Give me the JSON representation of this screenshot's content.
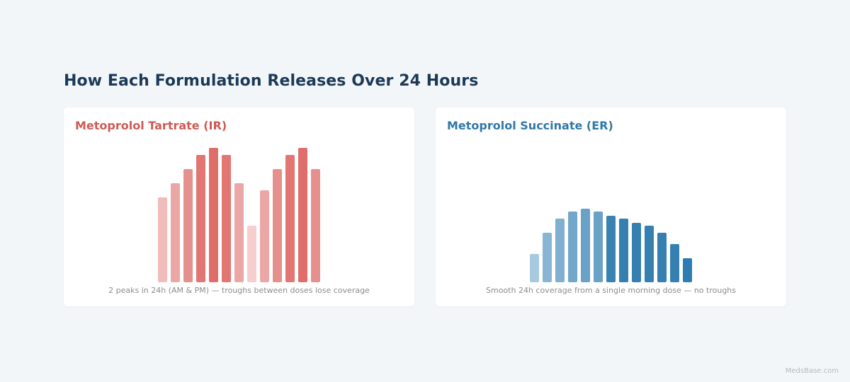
{
  "title": "How Each Formulation Releases Over 24 Hours",
  "watermark": "MedsBase.com",
  "chart_data": [
    {
      "type": "bar",
      "title": "Metoprolol Tartrate (IR)",
      "caption": "2 peaks in 24h (AM & PM) — troughs between doses lose coverage",
      "values": [
        60,
        70,
        80,
        90,
        95,
        90,
        70,
        40,
        65,
        80,
        90,
        95,
        80
      ],
      "ylim": [
        0,
        100
      ],
      "grid": false,
      "colors": [
        "#f2bcbb",
        "#eba7a6",
        "#e6908e",
        "#e17673",
        "#df6e6b",
        "#e17673",
        "#eba7a6",
        "#f5cecd",
        "#eba7a6",
        "#e6908e",
        "#e17673",
        "#df6e6b",
        "#e6908e"
      ]
    },
    {
      "type": "bar",
      "title": "Metoprolol Succinate (ER)",
      "caption": "Smooth 24h coverage from a single morning dose — no troughs",
      "values": [
        20,
        35,
        45,
        50,
        52,
        50,
        47,
        45,
        42,
        40,
        35,
        27,
        17
      ],
      "ylim": [
        0,
        100
      ],
      "grid": false,
      "colors": [
        "#a9c9de",
        "#89b5d2",
        "#80afcf",
        "#72a7ca",
        "#6aa1c7",
        "#6aa1c7",
        "#3a82b2",
        "#3580b1",
        "#3580b1",
        "#3580b1",
        "#3580b1",
        "#3580b1",
        "#2f7cb0"
      ]
    }
  ]
}
